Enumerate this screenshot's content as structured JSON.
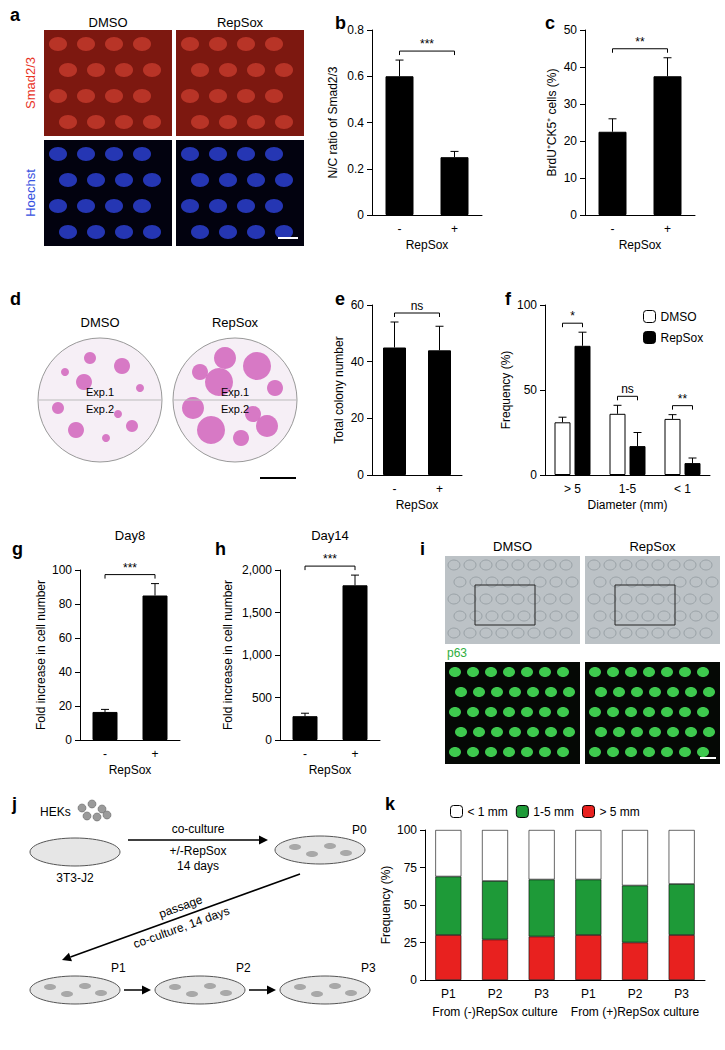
{
  "chart_data": [
    {
      "panel_label": "b",
      "type": "bar",
      "categories": [
        "-",
        "+"
      ],
      "values": [
        0.6,
        0.25
      ],
      "errors": [
        0.07,
        0.025
      ],
      "color": "#000000",
      "xlabel": "RepSox",
      "ylabel": "N/C ratio of Smad2/3",
      "ylim": [
        0,
        0.8
      ],
      "yticks": [
        0,
        0.2,
        0.4,
        0.6,
        0.8
      ],
      "significance": [
        "***"
      ],
      "grid": false
    },
    {
      "panel_label": "c",
      "type": "bar",
      "categories": [
        "-",
        "+"
      ],
      "values": [
        22.5,
        37.5
      ],
      "errors": [
        3.5,
        5
      ],
      "color": "#000000",
      "xlabel": "RepSox",
      "ylabel": "BrdU⁺CK5⁺ cells (%)",
      "ylim": [
        0,
        50
      ],
      "yticks": [
        0,
        10,
        20,
        30,
        40,
        50
      ],
      "significance": [
        "**"
      ],
      "grid": false
    },
    {
      "panel_label": "e",
      "type": "bar",
      "categories": [
        "-",
        "+"
      ],
      "values": [
        45,
        44
      ],
      "errors": [
        9,
        8.5
      ],
      "color": "#000000",
      "xlabel": "RepSox",
      "ylabel": "Total colony number",
      "ylim": [
        0,
        60
      ],
      "yticks": [
        0,
        20,
        40,
        60
      ],
      "significance": [
        "ns"
      ],
      "grid": false
    },
    {
      "panel_label": "f",
      "type": "bar",
      "categories": [
        "> 5",
        "1-5",
        "< 1"
      ],
      "xlabel": "Diameter (mm)",
      "ylabel": "Frequency (%)",
      "series": [
        {
          "name": "DMSO",
          "color": "#ffffff",
          "values": [
            31,
            36,
            33
          ],
          "errors": [
            3,
            5,
            2.5
          ]
        },
        {
          "name": "RepSox",
          "color": "#000000",
          "values": [
            76,
            17,
            7
          ],
          "errors": [
            8,
            8,
            3
          ]
        }
      ],
      "significance": [
        "*",
        "ns",
        "**"
      ],
      "legend": "upper right",
      "ylim": [
        0,
        100
      ],
      "yticks": [
        0,
        50,
        100
      ],
      "grid": false
    },
    {
      "panel_label": "g",
      "type": "bar",
      "title": "Day8",
      "categories": [
        "-",
        "+"
      ],
      "values": [
        16.5,
        85
      ],
      "errors": [
        1.5,
        7
      ],
      "color": "#000000",
      "xlabel": "RepSox",
      "ylabel": "Fold increase in cell number",
      "ylim": [
        0,
        100
      ],
      "yticks": [
        0,
        20,
        40,
        60,
        80,
        100
      ],
      "significance": [
        "***"
      ],
      "grid": false
    },
    {
      "panel_label": "h",
      "type": "bar",
      "title": "Day14",
      "categories": [
        "-",
        "+"
      ],
      "values": [
        280,
        1820
      ],
      "errors": [
        35,
        120
      ],
      "color": "#000000",
      "xlabel": "RepSox",
      "ylabel": "Fold increase in cell number",
      "ylim": [
        0,
        2000
      ],
      "yticks": [
        0,
        500,
        {
          "value": 1000,
          "label": "1,000"
        },
        {
          "value": 1500,
          "label": "1,500"
        },
        {
          "value": 2000,
          "label": "2,000"
        }
      ],
      "significance": [
        "***"
      ],
      "grid": false
    },
    {
      "panel_label": "k",
      "type": "bar",
      "stacked": true,
      "categories": [
        "P1",
        "P2",
        "P3",
        "P1",
        "P2",
        "P3"
      ],
      "group_labels": [
        "From (-)RepSox culture",
        "From (+)RepSox culture"
      ],
      "ylabel": "Frequency (%)",
      "series": [
        {
          "name": "> 5 mm",
          "color": "#e8211f",
          "values": [
            30,
            27,
            29,
            30,
            25,
            30
          ]
        },
        {
          "name": "1-5 mm",
          "color": "#1e9a38",
          "values": [
            39,
            39,
            38,
            37,
            38,
            34
          ]
        },
        {
          "name": "< 1 mm",
          "color": "#ffffff",
          "values": [
            31,
            34,
            33,
            33,
            37,
            36
          ]
        }
      ],
      "legend": "top",
      "ylim": [
        0,
        100
      ],
      "yticks": [
        0,
        25,
        50,
        75,
        100
      ],
      "grid": false
    }
  ],
  "image_panels": [
    {
      "panel_label": "a",
      "column_labels": [
        "DMSO",
        "RepSox"
      ],
      "row_labels": [
        "Smad2/3",
        "Hoechst"
      ]
    },
    {
      "panel_label": "d",
      "column_labels": [
        "DMSO",
        "RepSox"
      ],
      "dish_labels": [
        "Exp.1",
        "Exp.2"
      ]
    },
    {
      "panel_label": "i",
      "column_labels": [
        "DMSO",
        "RepSox"
      ],
      "stain_label": "p63"
    }
  ],
  "diagram": {
    "panel_label": "j",
    "cells_label": "HEKs",
    "feeder_label": "3T3-J2",
    "first_step": [
      "co-culture",
      "+/-RepSox",
      "14 days"
    ],
    "passage_step": [
      "passage",
      "co-culture, 14 days"
    ],
    "dish_labels": [
      "P0",
      "P1",
      "P2",
      "P3"
    ]
  }
}
